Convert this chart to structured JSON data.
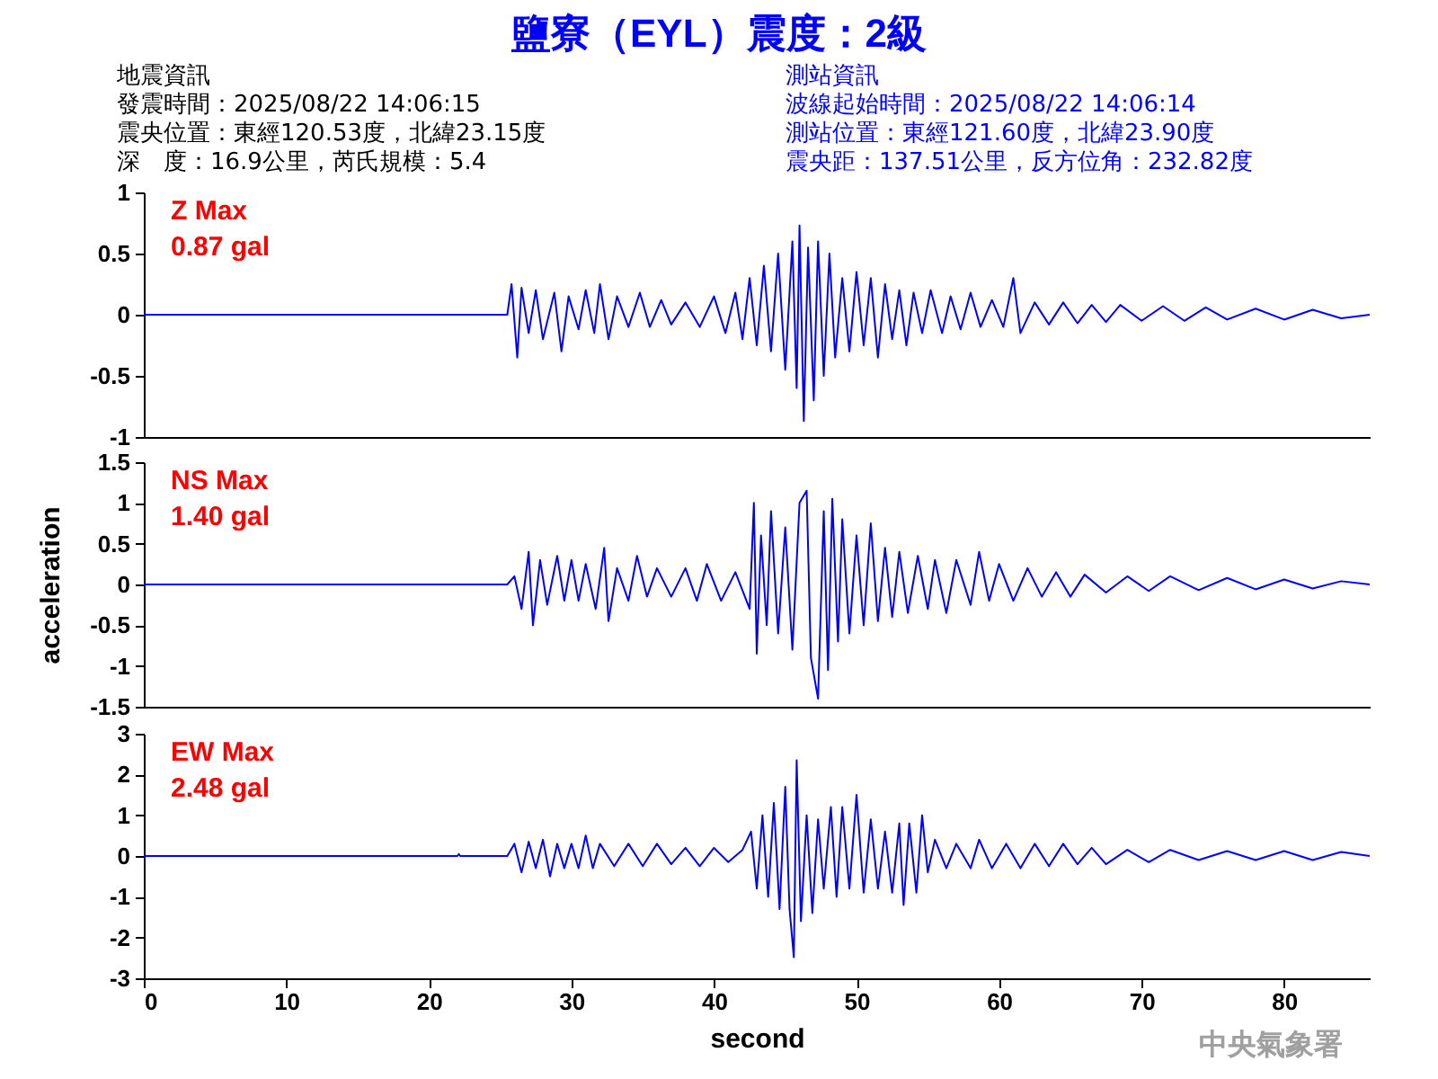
{
  "chart_data": [
    {
      "type": "other",
      "title": "鹽寮（EYL）震度：2級",
      "annotations": [
        "地震資訊",
        "發震時間：2025/08/22 14:06:15",
        "震央位置：東經120.53度，北緯23.15度",
        "深　度：16.9公里，芮氏規模：5.4",
        "測站資訊",
        "波線起始時間：2025/08/22 14:06:14",
        "測站位置：東經121.60度，北緯23.90度",
        "震央距：137.51公里，反方位角：232.82度"
      ]
    },
    {
      "type": "line",
      "color": "#0000ff",
      "xlim": [
        0,
        86
      ],
      "ylim": [
        -1,
        1
      ],
      "yticks": [
        -1,
        -0.5,
        0,
        0.5,
        1
      ],
      "tick_labels": "y",
      "annotations": [
        "Z Max",
        "0.87 gal"
      ],
      "x": [
        0,
        25.5,
        25.8,
        26.0,
        26.2,
        26.5,
        27,
        27.5,
        28,
        28.8,
        29.3,
        29.8,
        30.5,
        31,
        31.6,
        32,
        32.6,
        33.2,
        34,
        34.8,
        35.5,
        36.3,
        37,
        38,
        39,
        40,
        40.8,
        41.5,
        42,
        42.5,
        43,
        43.5,
        44,
        44.5,
        45,
        45.5,
        45.8,
        46,
        46.3,
        46.6,
        47,
        47.3,
        47.7,
        48.1,
        48.5,
        49,
        49.5,
        50,
        50.5,
        51,
        51.5,
        52,
        52.5,
        53,
        53.5,
        54,
        54.6,
        55.2,
        56,
        56.6,
        57.3,
        58,
        58.7,
        59.5,
        60.3,
        61,
        61.5,
        62.5,
        63.5,
        64.5,
        65.5,
        66.5,
        67.5,
        68.5,
        70,
        71.5,
        73,
        74.5,
        76,
        78,
        80,
        82,
        84,
        86
      ],
      "values": [
        0,
        0,
        0.25,
        -0.05,
        -0.35,
        0.22,
        -0.15,
        0.2,
        -0.2,
        0.18,
        -0.3,
        0.15,
        -0.12,
        0.2,
        -0.15,
        0.25,
        -0.2,
        0.15,
        -0.1,
        0.18,
        -0.1,
        0.12,
        -0.08,
        0.1,
        -0.1,
        0.15,
        -0.15,
        0.18,
        -0.2,
        0.3,
        -0.25,
        0.4,
        -0.3,
        0.5,
        -0.45,
        0.6,
        -0.6,
        0.73,
        -0.87,
        0.55,
        -0.7,
        0.6,
        -0.5,
        0.5,
        -0.35,
        0.3,
        -0.3,
        0.35,
        -0.25,
        0.3,
        -0.35,
        0.25,
        -0.2,
        0.2,
        -0.25,
        0.18,
        -0.15,
        0.2,
        -0.15,
        0.15,
        -0.12,
        0.18,
        -0.1,
        0.12,
        -0.1,
        0.3,
        -0.15,
        0.1,
        -0.08,
        0.1,
        -0.07,
        0.08,
        -0.06,
        0.08,
        -0.05,
        0.07,
        -0.05,
        0.06,
        -0.04,
        0.05,
        -0.04,
        0.04,
        -0.03,
        0
      ]
    },
    {
      "type": "line",
      "color": "#0000ff",
      "xlim": [
        0,
        86
      ],
      "ylim": [
        -1.5,
        1.5
      ],
      "yticks": [
        -1.5,
        -1,
        -0.5,
        0,
        0.5,
        1,
        1.5
      ],
      "tick_labels": "y",
      "ylabel": "acceleration",
      "annotations": [
        "NS Max",
        "1.40 gal"
      ],
      "x": [
        0,
        25.5,
        26,
        26.5,
        27,
        27.3,
        27.8,
        28.3,
        29,
        29.5,
        30,
        30.5,
        31,
        31.7,
        32.3,
        32.6,
        33.2,
        34,
        34.6,
        35.3,
        36,
        37,
        38,
        38.8,
        39.5,
        40.5,
        41.5,
        42.5,
        42.8,
        43,
        43.3,
        43.7,
        44,
        44.5,
        45,
        45.5,
        46,
        46.5,
        46.8,
        47.3,
        47.7,
        48,
        48.3,
        48.7,
        49,
        49.5,
        50,
        50.5,
        51,
        51.5,
        52,
        52.5,
        53,
        53.6,
        54.3,
        55,
        55.5,
        56.3,
        57,
        58,
        58.6,
        59.3,
        60,
        61,
        62,
        63,
        64,
        65,
        66,
        67.5,
        69,
        70.5,
        72,
        74,
        76,
        78,
        80,
        82,
        84,
        86
      ],
      "values": [
        0,
        0,
        0.1,
        -0.3,
        0.4,
        -0.5,
        0.3,
        -0.25,
        0.35,
        -0.2,
        0.3,
        -0.2,
        0.25,
        -0.3,
        0.45,
        -0.45,
        0.2,
        -0.2,
        0.35,
        -0.15,
        0.2,
        -0.15,
        0.2,
        -0.2,
        0.25,
        -0.2,
        0.15,
        -0.3,
        1.0,
        -0.85,
        0.6,
        -0.5,
        0.9,
        -0.6,
        0.7,
        -0.8,
        1.0,
        1.15,
        -0.9,
        -1.4,
        0.9,
        -1.05,
        1.05,
        -0.7,
        0.8,
        -0.6,
        0.6,
        -0.5,
        0.75,
        -0.45,
        0.45,
        -0.4,
        0.4,
        -0.35,
        0.35,
        -0.3,
        0.3,
        -0.35,
        0.3,
        -0.25,
        0.4,
        -0.2,
        0.25,
        -0.2,
        0.2,
        -0.15,
        0.15,
        -0.15,
        0.12,
        -0.1,
        0.1,
        -0.08,
        0.1,
        -0.07,
        0.08,
        -0.06,
        0.06,
        -0.05,
        0.04,
        0
      ]
    },
    {
      "type": "line",
      "color": "#0000ff",
      "xlim": [
        0,
        86
      ],
      "xticks": [
        0,
        10,
        20,
        30,
        40,
        50,
        60,
        70,
        80
      ],
      "ylim": [
        -3,
        3
      ],
      "yticks": [
        -3,
        -2,
        -1,
        0,
        1,
        2,
        3
      ],
      "xlabel": "second",
      "annotations": [
        "EW Max",
        "2.48 gal",
        "中央氣象署"
      ],
      "x": [
        0,
        22,
        22.1,
        22.2,
        25.5,
        26,
        26.5,
        27,
        27.5,
        28,
        28.5,
        29,
        29.5,
        30,
        30.5,
        31,
        31.5,
        32,
        33,
        34,
        35,
        36,
        37,
        38,
        39,
        40,
        41,
        42,
        42.6,
        43,
        43.4,
        43.8,
        44.2,
        44.6,
        45,
        45.3,
        45.6,
        45.8,
        46.1,
        46.5,
        46.9,
        47.3,
        47.7,
        48.2,
        48.6,
        49,
        49.5,
        50,
        50.5,
        51,
        51.5,
        52,
        52.5,
        53,
        53.3,
        53.7,
        54.2,
        54.6,
        55,
        55.5,
        56.3,
        57,
        58,
        58.6,
        59.5,
        60.5,
        61.5,
        62.5,
        63.5,
        64.5,
        65.5,
        66.5,
        67.5,
        69,
        70.5,
        72,
        74,
        76,
        78,
        80,
        82,
        84,
        86
      ],
      "values": [
        0,
        0,
        0.05,
        0,
        0,
        0.3,
        -0.4,
        0.35,
        -0.3,
        0.4,
        -0.5,
        0.3,
        -0.3,
        0.3,
        -0.3,
        0.5,
        -0.3,
        0.3,
        -0.25,
        0.3,
        -0.25,
        0.3,
        -0.2,
        0.2,
        -0.25,
        0.2,
        -0.15,
        0.15,
        0.6,
        -0.8,
        1.0,
        -1.0,
        1.3,
        -1.3,
        1.7,
        -1.3,
        -2.48,
        2.35,
        -1.6,
        1.0,
        -1.4,
        0.9,
        -0.8,
        1.2,
        -1.0,
        1.2,
        -0.8,
        1.5,
        -0.9,
        0.9,
        -0.8,
        0.6,
        -0.9,
        0.8,
        -1.2,
        0.8,
        -0.9,
        1.0,
        -0.4,
        0.4,
        -0.3,
        0.3,
        -0.3,
        0.4,
        -0.3,
        0.3,
        -0.3,
        0.3,
        -0.25,
        0.3,
        -0.2,
        0.2,
        -0.2,
        0.15,
        -0.15,
        0.15,
        -0.1,
        0.12,
        -0.1,
        0.12,
        -0.1,
        0.1,
        0
      ]
    }
  ]
}
